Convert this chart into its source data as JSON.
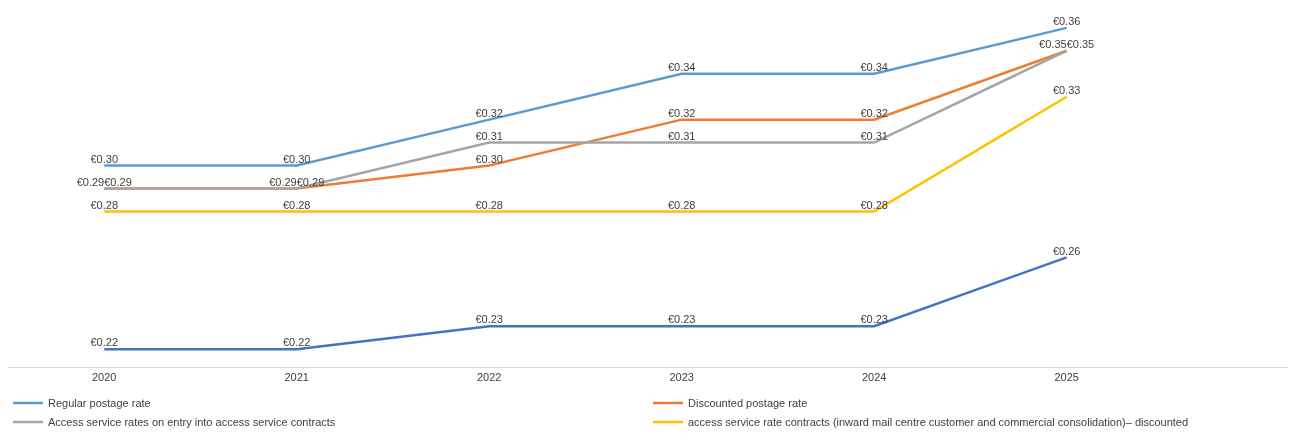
{
  "chart_data": {
    "type": "line",
    "categories": [
      "2020",
      "2021",
      "2022",
      "2023",
      "2024",
      "2025"
    ],
    "tick_labels": "x",
    "legend": "bottom",
    "marker": "none",
    "line_style": "solid",
    "series": [
      {
        "name": "Regular postage rate",
        "color": "#5b9bd5",
        "values": [
          0.3,
          0.3,
          0.32,
          0.34,
          0.34,
          0.36
        ],
        "value_labels": [
          "€0.30",
          "€0.30",
          "€0.32",
          "€0.34",
          "€0.34",
          "€0.36"
        ]
      },
      {
        "name": "Discounted postage rate",
        "color": "#ed7d31",
        "values": [
          0.29,
          0.29,
          0.3,
          0.32,
          0.32,
          0.35
        ],
        "value_labels": [
          "€0.29",
          "€0.29",
          "€0.30",
          "€0.32",
          "€0.32",
          "€0.35"
        ]
      },
      {
        "name": "Access service rates on entry into access service contracts",
        "color": "#a5a5a5",
        "values": [
          0.29,
          0.29,
          0.31,
          0.31,
          0.31,
          0.35
        ],
        "value_labels": [
          "€0.29",
          "€0.29",
          "€0.31",
          "€0.31",
          "€0.31",
          "€0.35"
        ]
      },
      {
        "name": "access service rate contracts (inward mail centre customer and commercial consolidation)– discounted",
        "color": "#ffc000",
        "values": [
          0.28,
          0.28,
          0.28,
          0.28,
          0.28,
          0.33
        ],
        "value_labels": [
          "€0.28",
          "€0.28",
          "€0.28",
          "€0.28",
          "€0.28",
          "€0.33"
        ]
      },
      {
        "color": "#4472c4",
        "values": [
          0.22,
          0.22,
          0.23,
          0.23,
          0.23,
          0.26
        ],
        "value_labels": [
          "€0.22",
          "€0.22",
          "€0.23",
          "€0.23",
          "€0.23",
          "€0.26"
        ]
      }
    ]
  }
}
